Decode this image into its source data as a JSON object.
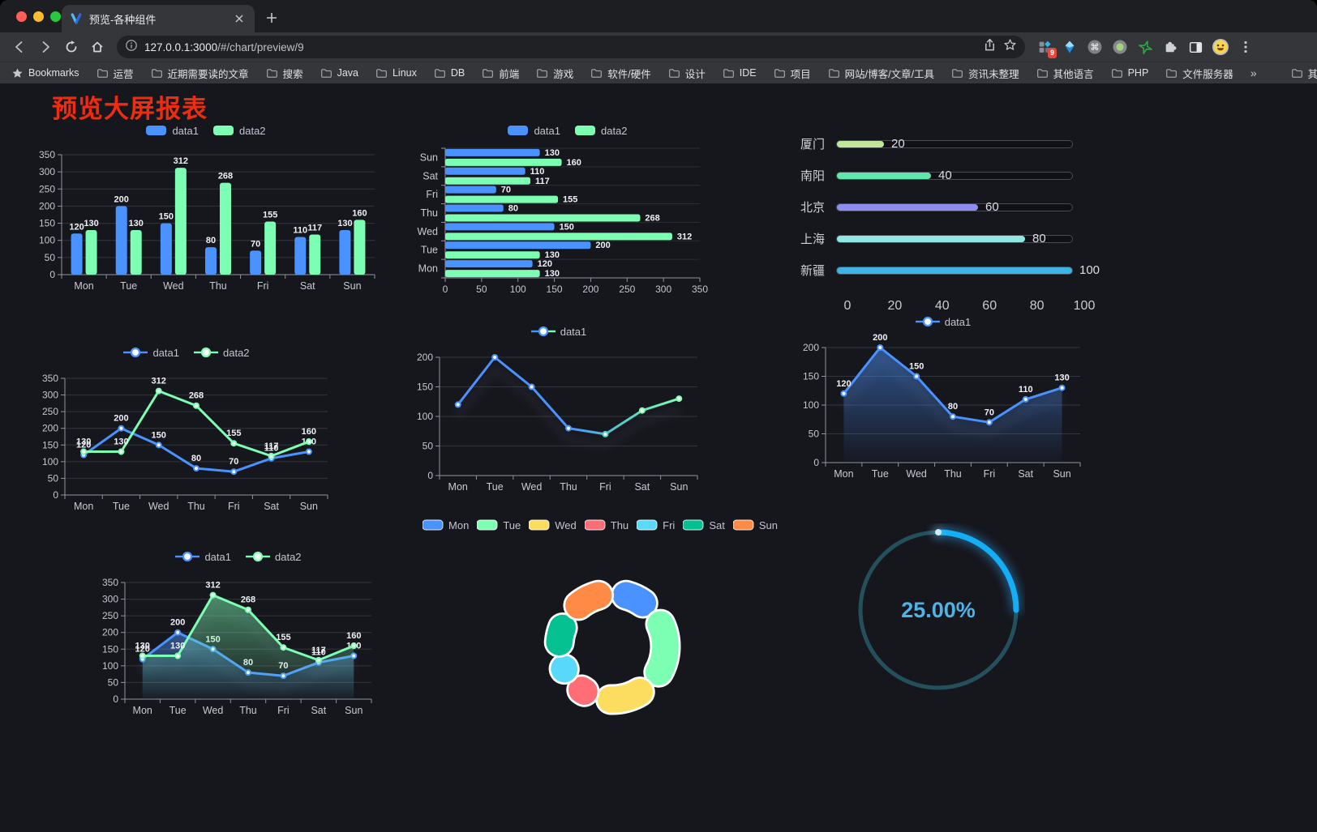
{
  "browser": {
    "tab_title": "预览-各种组件",
    "url_host": "127.0.0.1:3000",
    "url_path": "/#/chart/preview/9",
    "extension_badge": "9",
    "bookmarks_label": "Bookmarks",
    "bookmarks": [
      "运营",
      "近期需要读的文章",
      "搜索",
      "Java",
      "Linux",
      "DB",
      "前端",
      "游戏",
      "软件/硬件",
      "设计",
      "IDE",
      "项目",
      "网站/博客/文章/工具",
      "资讯未整理",
      "其他语言",
      "PHP",
      "文件服务器"
    ],
    "bookmarks_overflow": "»",
    "other_bookmarks": "其他书签",
    "icons": {
      "command_glyph": "⌘"
    }
  },
  "page": {
    "title": "预览大屏报表"
  },
  "chart_data": [
    {
      "id": "bar-grouped",
      "type": "bar",
      "legend_position": "top",
      "categories": [
        "Mon",
        "Tue",
        "Wed",
        "Thu",
        "Fri",
        "Sat",
        "Sun"
      ],
      "series": [
        {
          "name": "data1",
          "color": "#4992ff",
          "values": [
            120,
            200,
            150,
            80,
            70,
            110,
            130
          ]
        },
        {
          "name": "data2",
          "color": "#7cffb2",
          "values": [
            130,
            130,
            312,
            268,
            155,
            117,
            160
          ]
        }
      ],
      "ylim": [
        0,
        350
      ],
      "ytick_step": 50,
      "grid": true
    },
    {
      "id": "bar-horizontal",
      "type": "bar",
      "orientation": "horizontal",
      "legend_position": "top",
      "categories": [
        "Mon",
        "Tue",
        "Wed",
        "Thu",
        "Fri",
        "Sat",
        "Sun"
      ],
      "display_top_to_bottom": [
        "Sun",
        "Sat",
        "Fri",
        "Thu",
        "Wed",
        "Tue",
        "Mon"
      ],
      "series": [
        {
          "name": "data1",
          "color": "#4992ff",
          "values": [
            120,
            200,
            150,
            80,
            70,
            110,
            130
          ]
        },
        {
          "name": "data2",
          "color": "#7cffb2",
          "values": [
            130,
            130,
            312,
            268,
            155,
            117,
            160
          ]
        }
      ],
      "xlim": [
        0,
        350
      ],
      "xtick_step": 50,
      "grid": true
    },
    {
      "id": "progress-bars",
      "type": "bar",
      "orientation": "progress",
      "rows": [
        {
          "label": "厦门",
          "value": 20,
          "color": "#c0e79a"
        },
        {
          "label": "南阳",
          "value": 40,
          "color": "#5ee6ad"
        },
        {
          "label": "北京",
          "value": 60,
          "color": "#8c8df0"
        },
        {
          "label": "上海",
          "value": 80,
          "color": "#90e7e3"
        },
        {
          "label": "新疆",
          "value": 100,
          "color": "#3db4e6"
        }
      ],
      "xlim": [
        0,
        100
      ],
      "xticks": [
        0,
        20,
        40,
        60,
        80,
        100
      ]
    },
    {
      "id": "line-basic",
      "type": "line",
      "legend_position": "top",
      "categories": [
        "Mon",
        "Tue",
        "Wed",
        "Thu",
        "Fri",
        "Sat",
        "Sun"
      ],
      "series": [
        {
          "name": "data1",
          "color": "#4992ff",
          "values": [
            120,
            200,
            150,
            80,
            70,
            110,
            130
          ],
          "show_labels": true
        },
        {
          "name": "data2",
          "color": "#7cffb2",
          "values": [
            130,
            130,
            312,
            268,
            155,
            117,
            160
          ],
          "show_labels": true
        }
      ],
      "ylim": [
        0,
        350
      ],
      "ytick_step": 50,
      "grid": true
    },
    {
      "id": "line-gradient",
      "type": "line",
      "legend_position": "top",
      "categories": [
        "Mon",
        "Tue",
        "Wed",
        "Thu",
        "Fri",
        "Sat",
        "Sun"
      ],
      "series": [
        {
          "name": "data1",
          "color": "#4992ff",
          "gradient": [
            "#4992ff",
            "#7cffb2"
          ],
          "values": [
            120,
            200,
            150,
            80,
            70,
            110,
            130
          ],
          "show_labels": false,
          "shadow": true
        }
      ],
      "ylim": [
        0,
        200
      ],
      "ytick_step": 50,
      "grid": true
    },
    {
      "id": "line-area",
      "type": "area",
      "legend_position": "top",
      "categories": [
        "Mon",
        "Tue",
        "Wed",
        "Thu",
        "Fri",
        "Sat",
        "Sun"
      ],
      "series": [
        {
          "name": "data1",
          "color": "#4992ff",
          "area": true,
          "values": [
            120,
            200,
            150,
            80,
            70,
            110,
            130
          ],
          "show_labels": true,
          "shadow": true
        }
      ],
      "ylim": [
        0,
        200
      ],
      "ytick_step": 50,
      "grid": true
    },
    {
      "id": "line-area-double",
      "type": "area",
      "legend_position": "top",
      "categories": [
        "Mon",
        "Tue",
        "Wed",
        "Thu",
        "Fri",
        "Sat",
        "Sun"
      ],
      "series": [
        {
          "name": "data1",
          "color": "#4992ff",
          "area": true,
          "values": [
            120,
            200,
            150,
            80,
            70,
            110,
            130
          ],
          "show_labels": true,
          "shadow": true
        },
        {
          "name": "data2",
          "color": "#7cffb2",
          "area": true,
          "values": [
            130,
            130,
            312,
            268,
            155,
            117,
            160
          ],
          "show_labels": true,
          "shadow": true
        }
      ],
      "ylim": [
        0,
        350
      ],
      "ytick_step": 50,
      "grid": true
    },
    {
      "id": "pie-donut",
      "type": "pie",
      "legend_position": "top",
      "labels": [
        "Mon",
        "Tue",
        "Wed",
        "Thu",
        "Fri",
        "Sat",
        "Sun"
      ],
      "values": [
        120,
        200,
        150,
        80,
        70,
        110,
        130
      ],
      "colors": [
        "#4992ff",
        "#7cffb2",
        "#fddd60",
        "#ff6e76",
        "#58d9f9",
        "#05c091",
        "#ff8a45"
      ],
      "donut": true
    },
    {
      "id": "gauge-progress",
      "type": "gauge",
      "value": 25,
      "max": 100,
      "label": "25.00%",
      "arc_color": "#14aef5",
      "track_color": "#24505e",
      "text_color": "#4fb3e8"
    }
  ]
}
